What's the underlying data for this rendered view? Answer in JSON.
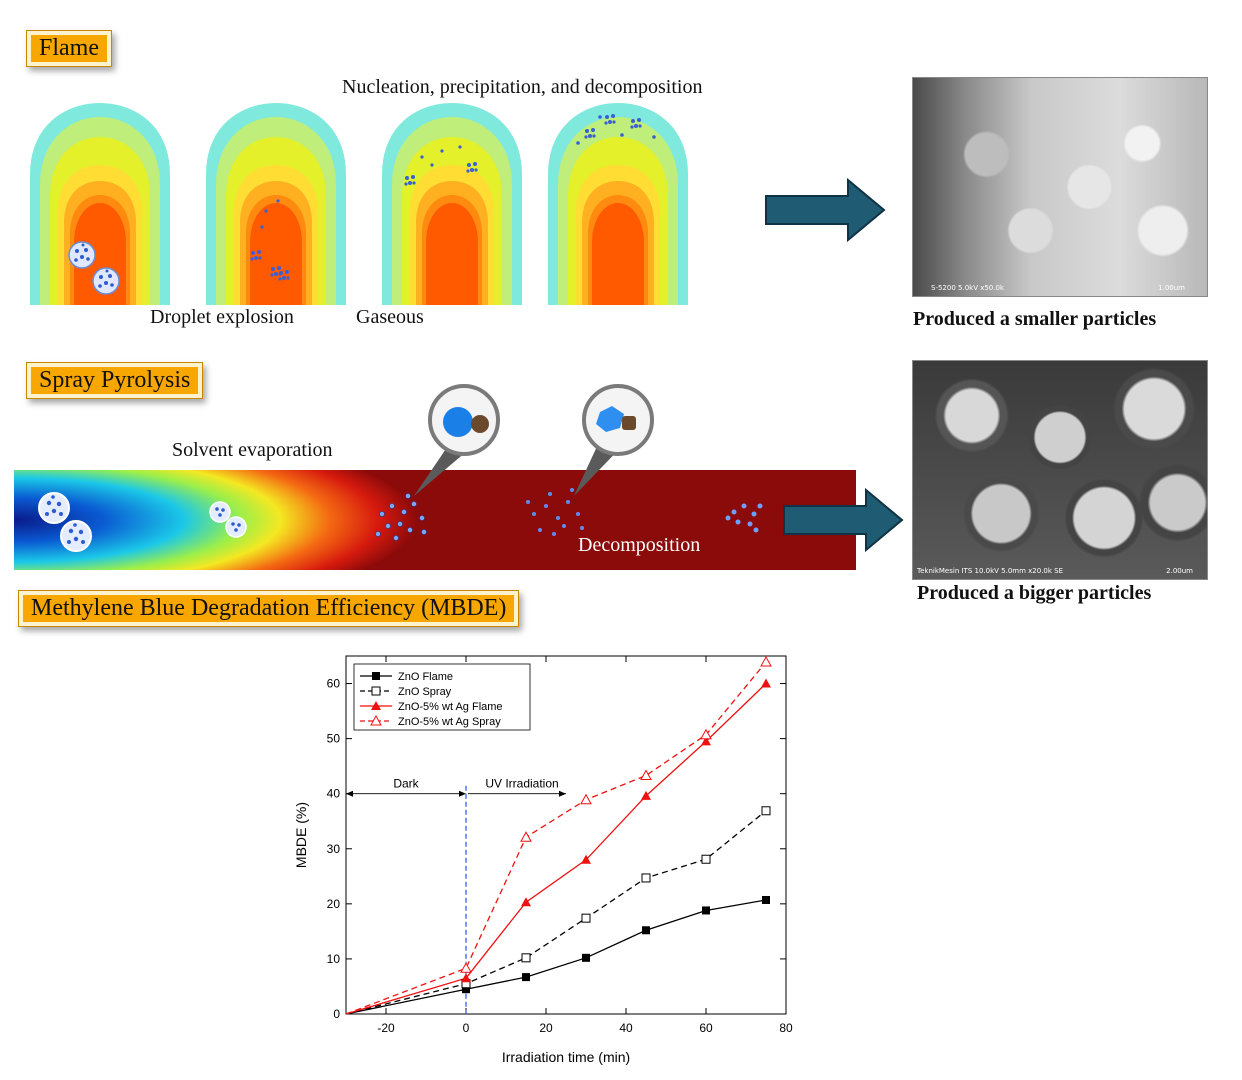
{
  "flame": {
    "title": "Flame",
    "caption_top": "Nucleation, precipitation, and decomposition",
    "caption_droplet": "Droplet explosion",
    "caption_gaseous": "Gaseous",
    "result": "Produced a smaller particles",
    "sem_label": "S-5200 5.0kV x50.0k",
    "sem_scale": "1.00um"
  },
  "spray": {
    "title": "Spray Pyrolysis",
    "caption_evap": "Solvent evaporation",
    "caption_decomp": "Decomposition",
    "result": "Produced a bigger particles",
    "sem_label": "TeknikMesin ITS 10.0kV 5.0mm x20.0k SE",
    "sem_scale": "2.00um"
  },
  "mbde": {
    "title": "Methylene Blue Degradation Efficiency (MBDE)"
  },
  "colors": {
    "label_fill": "#f7a700",
    "arrow_fill": "#1f5b73",
    "flame_outer": "#7fe9dd",
    "flame_inner": "#ff5a00",
    "tube_dark": "#8b0a0a",
    "series_black": "#000000",
    "series_red": "#ee1111"
  },
  "chart_data": {
    "type": "line",
    "xlabel": "Irradiation time (min)",
    "ylabel": "MBDE (%)",
    "xlim": [
      -30,
      80
    ],
    "ylim": [
      0,
      65
    ],
    "xticks": [
      -20,
      0,
      20,
      40,
      60,
      80
    ],
    "yticks": [
      0,
      10,
      20,
      30,
      40,
      50,
      60
    ],
    "legend_position": "top-left",
    "annotations": {
      "dark": "Dark",
      "uv": "UV Irradiation"
    },
    "series": [
      {
        "name": "ZnO Flame",
        "color": "#000000",
        "dash": false,
        "marker": "filled-square",
        "x": [
          -30,
          0,
          15,
          30,
          45,
          60,
          75
        ],
        "y": [
          0,
          4.5,
          6.7,
          10.2,
          15.2,
          18.8,
          20.7
        ]
      },
      {
        "name": "ZnO Spray",
        "color": "#000000",
        "dash": true,
        "marker": "open-square",
        "x": [
          -30,
          0,
          15,
          30,
          45,
          60,
          75
        ],
        "y": [
          0,
          5.5,
          10.2,
          17.4,
          24.7,
          28.1,
          36.9
        ]
      },
      {
        "name": "ZnO-5% wt Ag Flame",
        "color": "#ee1111",
        "dash": false,
        "marker": "filled-triangle",
        "x": [
          -30,
          0,
          15,
          30,
          45,
          60,
          75
        ],
        "y": [
          0,
          6.5,
          20.3,
          28.0,
          39.6,
          49.5,
          60.0
        ]
      },
      {
        "name": "ZnO-5% wt Ag Spray",
        "color": "#ee1111",
        "dash": true,
        "marker": "open-triangle",
        "x": [
          -30,
          0,
          15,
          30,
          45,
          60,
          75
        ],
        "y": [
          0,
          8.3,
          32.1,
          38.9,
          43.3,
          50.7,
          63.9
        ]
      }
    ]
  }
}
